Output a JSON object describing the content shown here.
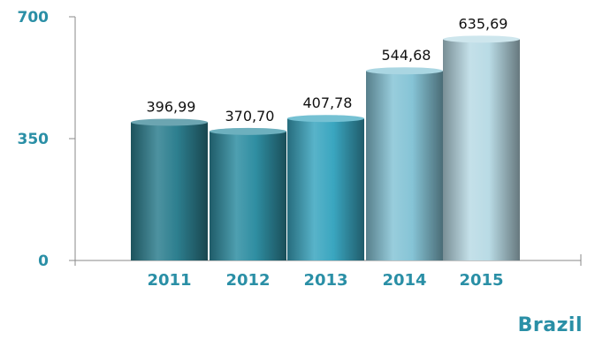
{
  "chart_data": {
    "type": "bar",
    "categories": [
      "2011",
      "2012",
      "2013",
      "2014",
      "2015"
    ],
    "values": [
      396.99,
      370.7,
      407.78,
      544.68,
      635.69
    ],
    "value_labels": [
      "396,99",
      "370,70",
      "407,78",
      "544,68",
      "635,69"
    ],
    "ylim": [
      0,
      700
    ],
    "yticks": [
      0,
      350,
      700
    ],
    "ytick_labels": [
      "0",
      "350",
      "700"
    ],
    "grid": false,
    "bar_colors": [
      "#2d7f8f",
      "#2f8ea2",
      "#3aa6c0",
      "#86c4d6",
      "#b9dbe5"
    ],
    "tick_color": "#2a8fa6"
  },
  "caption": "Brazil"
}
